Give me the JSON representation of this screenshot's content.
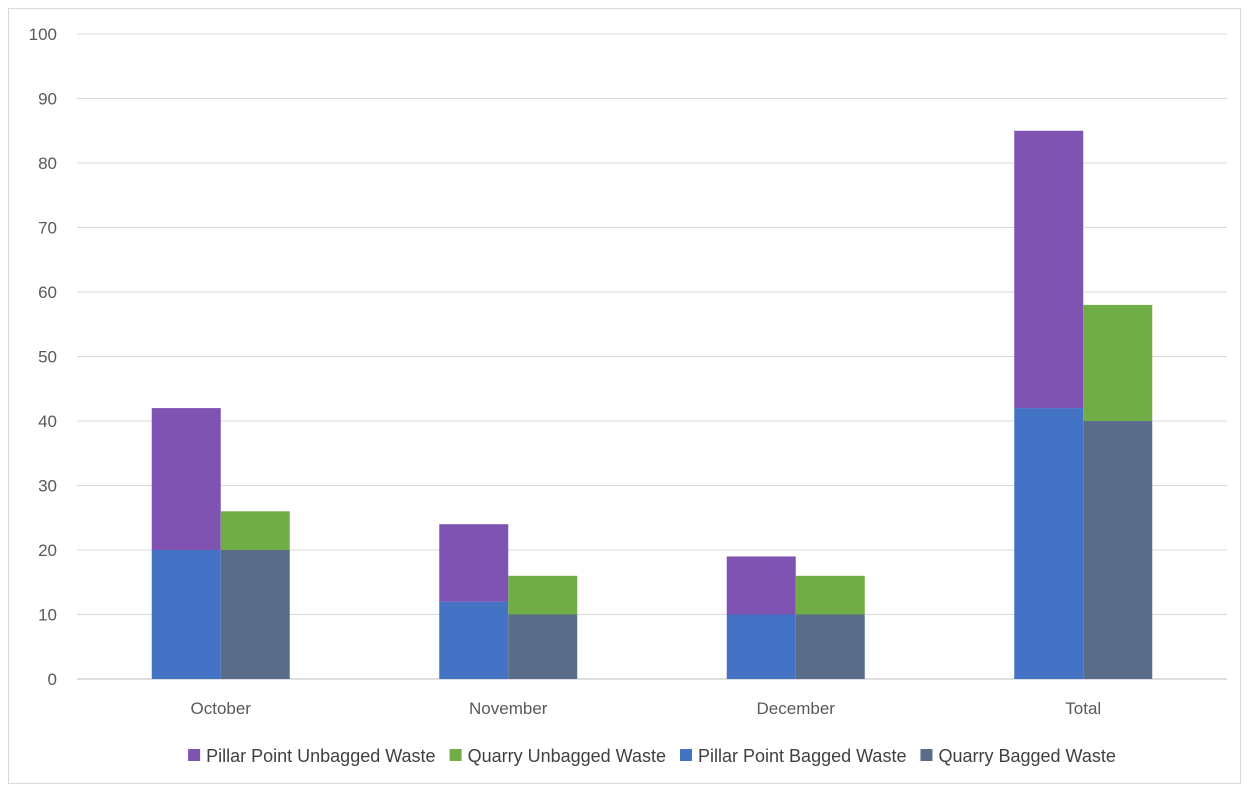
{
  "chart_data": {
    "type": "bar",
    "stacked": true,
    "grouped": true,
    "categories": [
      "October",
      "November",
      "December",
      "Total"
    ],
    "groups": [
      {
        "stack": "Pillar Point",
        "segments": [
          {
            "name": "Pillar Point Bagged Waste",
            "color": "#4472C4",
            "values": [
              20,
              12,
              10,
              42
            ]
          },
          {
            "name": "Pillar Point Unbagged Waste",
            "color": "#7E53B2",
            "values": [
              22,
              12,
              9,
              43
            ]
          }
        ]
      },
      {
        "stack": "Quarry",
        "segments": [
          {
            "name": "Quarry Bagged Waste",
            "color": "#596C8A",
            "values": [
              20,
              10,
              10,
              40
            ]
          },
          {
            "name": "Quarry Unbagged Waste",
            "color": "#70AD47",
            "values": [
              6,
              6,
              6,
              18
            ]
          }
        ]
      }
    ],
    "ylim": [
      0,
      100
    ],
    "yticks": [
      0,
      10,
      20,
      30,
      40,
      50,
      60,
      70,
      80,
      90,
      100
    ],
    "grid": true,
    "legend": {
      "position": "bottom",
      "entries": [
        {
          "label": "Pillar Point Unbagged Waste",
          "color": "#7E53B2"
        },
        {
          "label": "Quarry Unbagged Waste",
          "color": "#70AD47"
        },
        {
          "label": "Pillar Point Bagged Waste",
          "color": "#4472C4"
        },
        {
          "label": "Quarry Bagged Waste",
          "color": "#596C8A"
        }
      ]
    },
    "title": "",
    "xlabel": "",
    "ylabel": ""
  }
}
